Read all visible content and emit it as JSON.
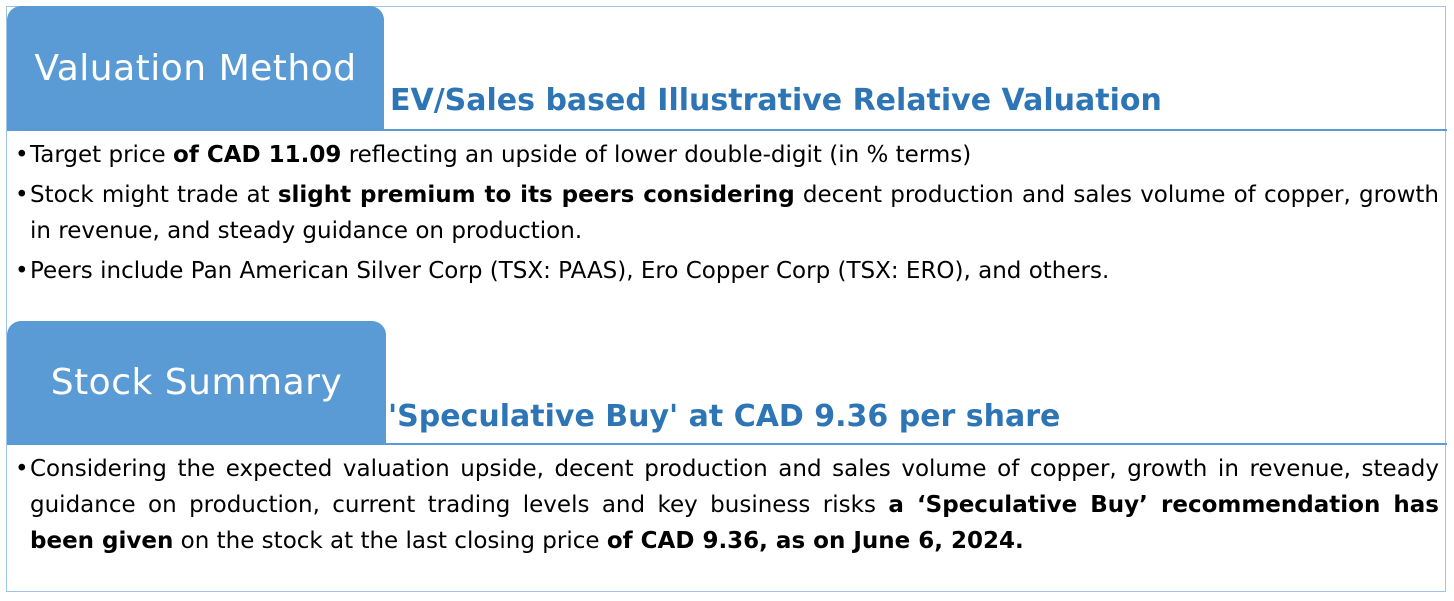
{
  "valuation": {
    "tab_label": "Valuation Method",
    "subtitle": "EV/Sales based Illustrative Relative Valuation",
    "bullets": [
      [
        {
          "t": "Target price ",
          "b": false
        },
        {
          "t": "of CAD 11.09",
          "b": true
        },
        {
          "t": " reflecting an upside of lower double-digit (in % terms)",
          "b": false
        }
      ],
      [
        {
          "t": "Stock might trade at ",
          "b": false
        },
        {
          "t": "slight premium to its peers considering",
          "b": true
        },
        {
          "t": " decent production and sales volume of copper, growth in revenue, and steady guidance on production.",
          "b": false
        }
      ],
      [
        {
          "t": "Peers include Pan American Silver Corp (TSX: PAAS), Ero Copper Corp (TSX: ERO), and others.",
          "b": false
        }
      ]
    ]
  },
  "summary": {
    "tab_label": "Stock Summary",
    "subtitle": "'Speculative Buy' at CAD 9.36 per share",
    "bullets": [
      [
        {
          "t": "Considering the expected valuation upside, decent production and sales volume of copper, growth in revenue, steady guidance on production, current trading levels and key business risks ",
          "b": false
        },
        {
          "t": "a ‘Speculative Buy’ recommendation has been given",
          "b": true
        },
        {
          "t": " on the stock at the last closing price ",
          "b": false
        },
        {
          "t": "of CAD 9.36, as on June 6, 2024.",
          "b": true
        }
      ]
    ]
  },
  "colors": {
    "accent": "#5b9bd5",
    "subtitle": "#2e75b6",
    "border": "#9dc3e6"
  }
}
